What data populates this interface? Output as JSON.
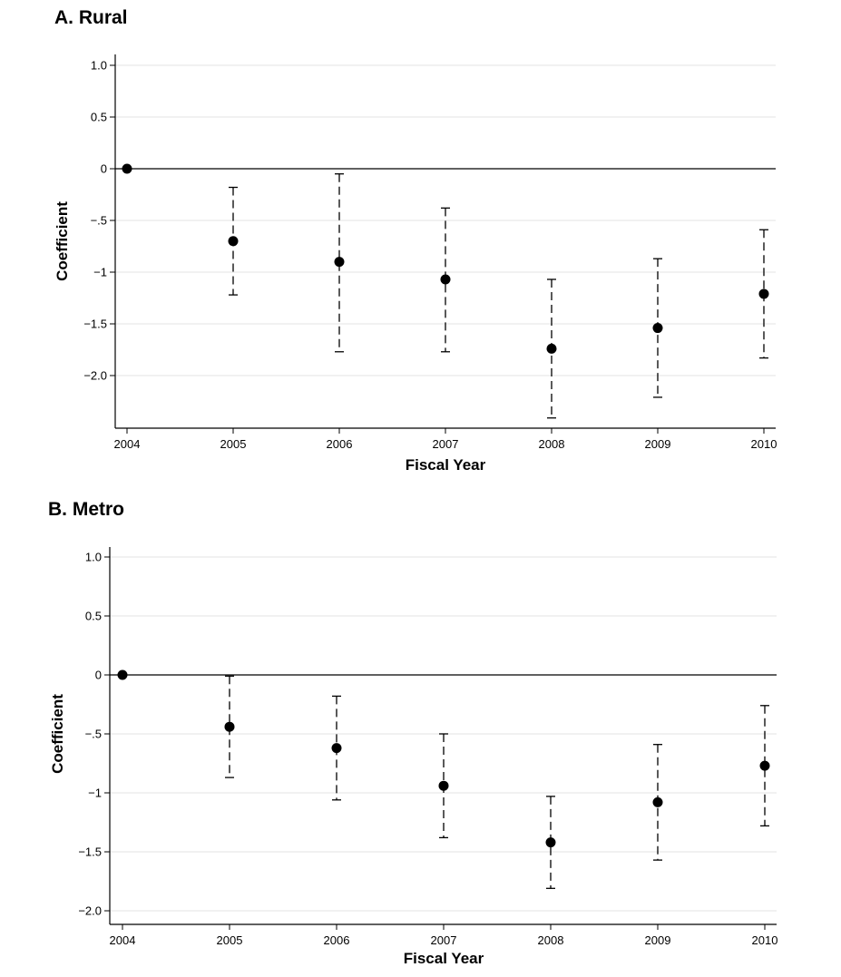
{
  "chart_data": [
    {
      "type": "scatter",
      "title": "A. Rural",
      "xlabel": "Fiscal Year",
      "ylabel": "Coefficient",
      "x": [
        "2004",
        "2005",
        "2006",
        "2007",
        "2008",
        "2009",
        "2010"
      ],
      "y": [
        0,
        -0.7,
        -0.9,
        -1.07,
        -1.74,
        -1.54,
        -1.21
      ],
      "ci_lower": [
        0,
        -1.22,
        -1.77,
        -1.77,
        -2.41,
        -2.21,
        -1.83
      ],
      "ci_upper": [
        0,
        -0.18,
        -0.05,
        -0.38,
        -1.07,
        -0.87,
        -0.59
      ],
      "yticks": [
        1.0,
        0.5,
        0,
        -0.5,
        -1,
        -1.5,
        -2.0
      ],
      "ytick_labels": [
        "1.0",
        "0.5",
        "0",
        "−.5",
        "−1",
        "−1.5",
        "−2.0"
      ],
      "ylim": [
        -2.5,
        1.05
      ],
      "grid": true,
      "reference_line_y": 0
    },
    {
      "type": "scatter",
      "title": "B. Metro",
      "xlabel": "Fiscal Year",
      "ylabel": "Coefficient",
      "x": [
        "2004",
        "2005",
        "2006",
        "2007",
        "2008",
        "2009",
        "2010"
      ],
      "y": [
        0,
        -0.44,
        -0.62,
        -0.94,
        -1.42,
        -1.08,
        -0.77
      ],
      "ci_lower": [
        0,
        -0.87,
        -1.06,
        -1.38,
        -1.81,
        -1.57,
        -1.28
      ],
      "ci_upper": [
        0,
        -0.01,
        -0.18,
        -0.5,
        -1.03,
        -0.59,
        -0.26
      ],
      "yticks": [
        1.0,
        0.5,
        0,
        -0.5,
        -1,
        -1.5,
        -2.0
      ],
      "ytick_labels": [
        "1.0",
        "0.5",
        "0",
        "−.5",
        "−1",
        "−1.5",
        "−2.0"
      ],
      "ylim": [
        -2.1,
        1.05
      ],
      "grid": true,
      "reference_line_y": 0
    }
  ]
}
